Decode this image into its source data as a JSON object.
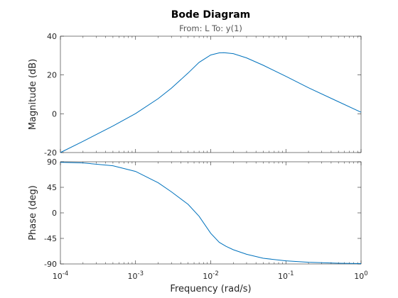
{
  "chart_data": [
    {
      "type": "line",
      "title": "Bode Diagram",
      "subtitle": "From: L  To: y(1)",
      "ylabel": "Magnitude (dB)",
      "xlabel": "",
      "x_scale": "log",
      "xlim": [
        0.0001,
        1
      ],
      "ylim": [
        -20,
        40
      ],
      "y_ticks": [
        -20,
        0,
        20,
        40
      ],
      "x_ticks": [
        0.0001,
        0.001,
        0.01,
        0.1,
        1
      ],
      "grid": false,
      "line_color": "#0072BD",
      "series": [
        {
          "x": [
            0.0001,
            0.0002,
            0.0005,
            0.001,
            0.002,
            0.003,
            0.005,
            0.007,
            0.01,
            0.013,
            0.015,
            0.02,
            0.03,
            0.05,
            0.1,
            0.2,
            0.5,
            1
          ],
          "values": [
            -20,
            -14.2,
            -6.3,
            0.1,
            7.8,
            13.2,
            21,
            26.5,
            30.3,
            31.4,
            31.5,
            31,
            28.8,
            25,
            19.3,
            13.4,
            6.2,
            0.8
          ]
        }
      ]
    },
    {
      "type": "line",
      "ylabel": "Phase (deg)",
      "xlabel": "Frequency  (rad/s)",
      "x_scale": "log",
      "xlim": [
        0.0001,
        1
      ],
      "ylim": [
        -90,
        90
      ],
      "y_ticks": [
        -90,
        -45,
        0,
        45,
        90
      ],
      "x_ticks": [
        0.0001,
        0.001,
        0.01,
        0.1,
        1
      ],
      "x_tick_labels": [
        {
          "base": "10",
          "exp": "-4"
        },
        {
          "base": "10",
          "exp": "-3"
        },
        {
          "base": "10",
          "exp": "-2"
        },
        {
          "base": "10",
          "exp": "-1"
        },
        {
          "base": "10",
          "exp": "0"
        }
      ],
      "grid": false,
      "line_color": "#0072BD",
      "series": [
        {
          "x": [
            0.0001,
            0.0002,
            0.0005,
            0.001,
            0.002,
            0.003,
            0.005,
            0.007,
            0.01,
            0.013,
            0.016,
            0.02,
            0.03,
            0.05,
            0.1,
            0.2,
            0.5,
            1
          ],
          "values": [
            89,
            88,
            83,
            73,
            53,
            37,
            15,
            -6,
            -36,
            -52,
            -59,
            -65,
            -73,
            -80,
            -84.5,
            -87,
            -88.8,
            -89.3
          ]
        }
      ]
    }
  ]
}
